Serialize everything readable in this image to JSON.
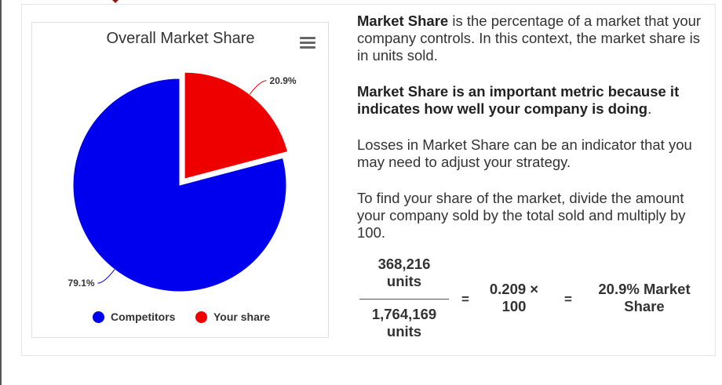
{
  "chart_data": {
    "type": "pie",
    "title": "Overall Market Share",
    "series": [
      {
        "name": "Competitors",
        "value": 79.1,
        "label": "79.1%",
        "color": "#0000ee"
      },
      {
        "name": "Your share",
        "value": 20.9,
        "label": "20.9%",
        "color": "#ee0000",
        "sliced": true
      }
    ],
    "legend_placement": "bottom"
  },
  "chart_menu_icon": "hamburger-menu-icon",
  "text": {
    "p1_bold": "Market Share",
    "p1_rest": " is the percentage of a market that your company controls. In this context, the market share is in units sold.",
    "p2_bold": "Market Share is an important metric because it indicates how well your company is doing",
    "p2_rest": ".",
    "p3": "Losses in Market Share can be an indicator that you may need to adjust your strategy.",
    "p4": "To find your share of the market, divide the amount your company sold by the total sold and multiply by 100."
  },
  "formula": {
    "numerator_line1": "368,216",
    "numerator_line2": "units",
    "denominator_line1": "1,764,169",
    "denominator_line2": "units",
    "equals": "=",
    "middle_line1": "0.209 ×",
    "middle_line2": "100",
    "result_line1": "20.9% Market",
    "result_line2": "Share"
  }
}
